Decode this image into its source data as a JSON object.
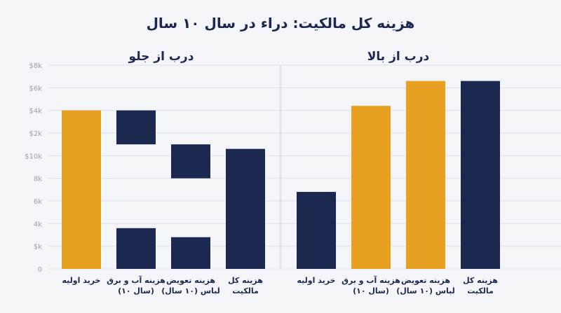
{
  "chart_data": {
    "type": "bar",
    "title": "هزینه کل مالکیت: دراء در سال ۱۰ سال",
    "y_ticks": [
      "0",
      "$k",
      "4k",
      "6k",
      "8k",
      "$10k",
      "$2k",
      "$4k",
      "$6k",
      "$8k"
    ],
    "colors": {
      "highlight": "#e8a020",
      "primary": "#1b2950"
    },
    "panels": [
      {
        "title": "درب از جلو",
        "categories": [
          "خرید اولیه",
          "هزینه آب و برق (۱۰ سال)",
          "هزینه تعویض لباس (۱۰ سال)",
          "هزینه کل مالکیت"
        ],
        "category_lines": [
          [
            "خرید اولیه"
          ],
          [
            "هزینه آب و برق",
            "(۱۰ سال)"
          ],
          [
            "هزینه تعویض",
            "لباس (۱۰ سال)"
          ],
          [
            "هزینه کل",
            "مالکیت"
          ]
        ],
        "bars": [
          {
            "segments": [
              [
                0,
                7
              ]
            ],
            "color": "highlight"
          },
          {
            "segments": [
              [
                0,
                1.8
              ],
              [
                5.5,
                7
              ]
            ],
            "color": "primary"
          },
          {
            "segments": [
              [
                0,
                1.4
              ],
              [
                4,
                5.5
              ]
            ],
            "color": "primary"
          },
          {
            "segments": [
              [
                0,
                5.3
              ]
            ],
            "color": "primary"
          }
        ]
      },
      {
        "title": "درب از بالا",
        "categories": [
          "خرید اولیه",
          "هزینه آب و برق (۱۰ سال)",
          "هزینه تعویض لباس (۱۰ سال)",
          "هزینه کل مالکیت"
        ],
        "category_lines": [
          [
            "خرید اولیه"
          ],
          [
            "هزینه آب و برق",
            "(۱۰ سال)"
          ],
          [
            "هزینه تعویض",
            "لباس (۱۰ سال)"
          ],
          [
            "هزینه کل",
            "مالکیت"
          ]
        ],
        "bars": [
          {
            "segments": [
              [
                0,
                3.4
              ]
            ],
            "color": "primary"
          },
          {
            "segments": [
              [
                0,
                7.2
              ]
            ],
            "color": "highlight"
          },
          {
            "segments": [
              [
                0,
                8.3
              ]
            ],
            "color": "highlight"
          },
          {
            "segments": [
              [
                0,
                8.3
              ]
            ],
            "color": "primary"
          }
        ]
      }
    ]
  }
}
